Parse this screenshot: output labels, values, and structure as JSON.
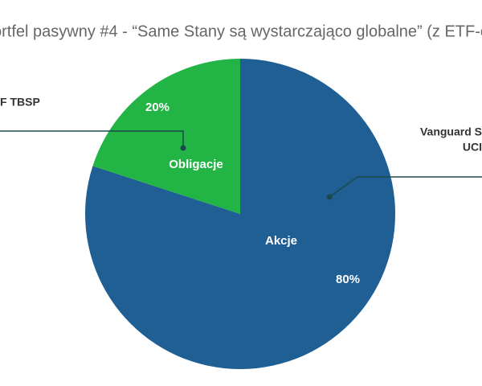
{
  "chart_data": {
    "type": "pie",
    "title": "ortfel pasywny #4 - “Same Stany są wystarczająco globalne” (z ETF-e",
    "categories": [
      "Akcje",
      "Obligacje"
    ],
    "values": [
      80,
      20
    ],
    "value_labels": [
      "80%",
      "20%"
    ],
    "colors": [
      "#1f5f94",
      "#22b545"
    ],
    "annotations": [
      "F TBSP",
      "Vanguard S",
      "UCI"
    ]
  }
}
